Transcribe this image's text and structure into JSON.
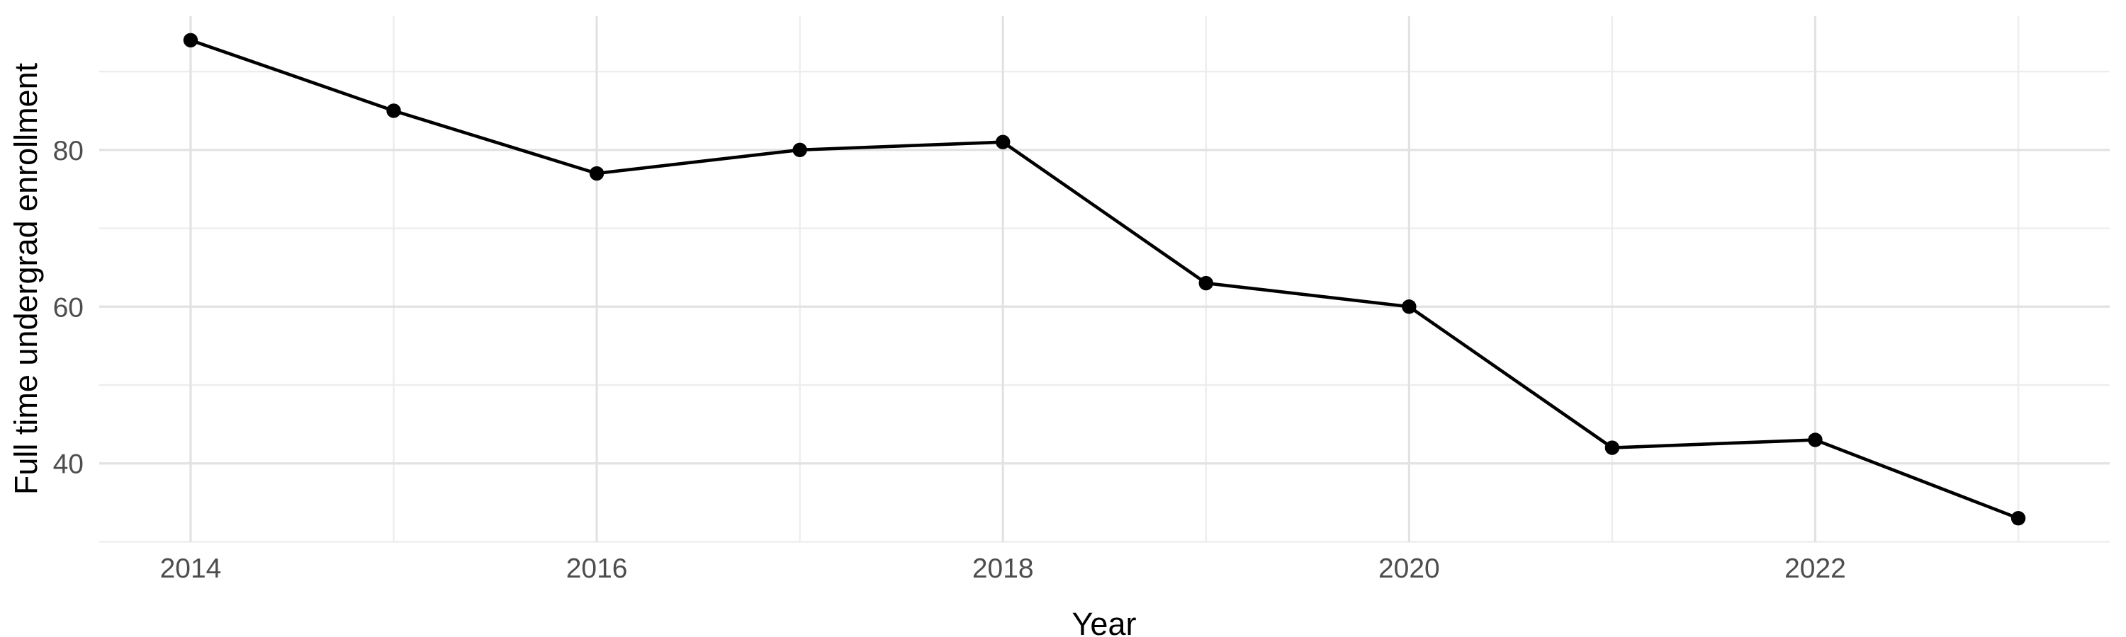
{
  "figure": {
    "title": "",
    "xlabel": "Year",
    "ylabel": "Full time undergrad enrollment"
  },
  "chart_data": {
    "type": "line",
    "x": [
      2014,
      2015,
      2016,
      2017,
      2018,
      2019,
      2020,
      2021,
      2022,
      2023
    ],
    "values": [
      94,
      85,
      77,
      80,
      81,
      63,
      60,
      42,
      43,
      33
    ],
    "series": [
      {
        "name": "Full time undergrad enrollment",
        "values": [
          94,
          85,
          77,
          80,
          81,
          63,
          60,
          42,
          43,
          33
        ]
      }
    ],
    "title": "",
    "xlabel": "Year",
    "ylabel": "Full time undergrad enrollment",
    "xlim": [
      2013.55,
      2023.45
    ],
    "ylim": [
      29.95,
      97.05
    ],
    "x_major_ticks": [
      2014,
      2016,
      2018,
      2020,
      2022
    ],
    "x_minor_gridlines": [
      2015,
      2017,
      2019,
      2021,
      2023
    ],
    "y_major_ticks": [
      40,
      60,
      80
    ],
    "y_minor_gridlines": [
      30,
      50,
      70,
      90
    ],
    "grid": "on",
    "legend": "none",
    "marker": "filled-circle",
    "style": {
      "background": "#ffffff",
      "line_color": "#000000",
      "point_color": "#000000",
      "grid_major_color": "#e2e2e2",
      "grid_minor_color": "#ededed",
      "axis_text_color": "#4d4d4d",
      "axis_title_color": "#000000"
    }
  }
}
